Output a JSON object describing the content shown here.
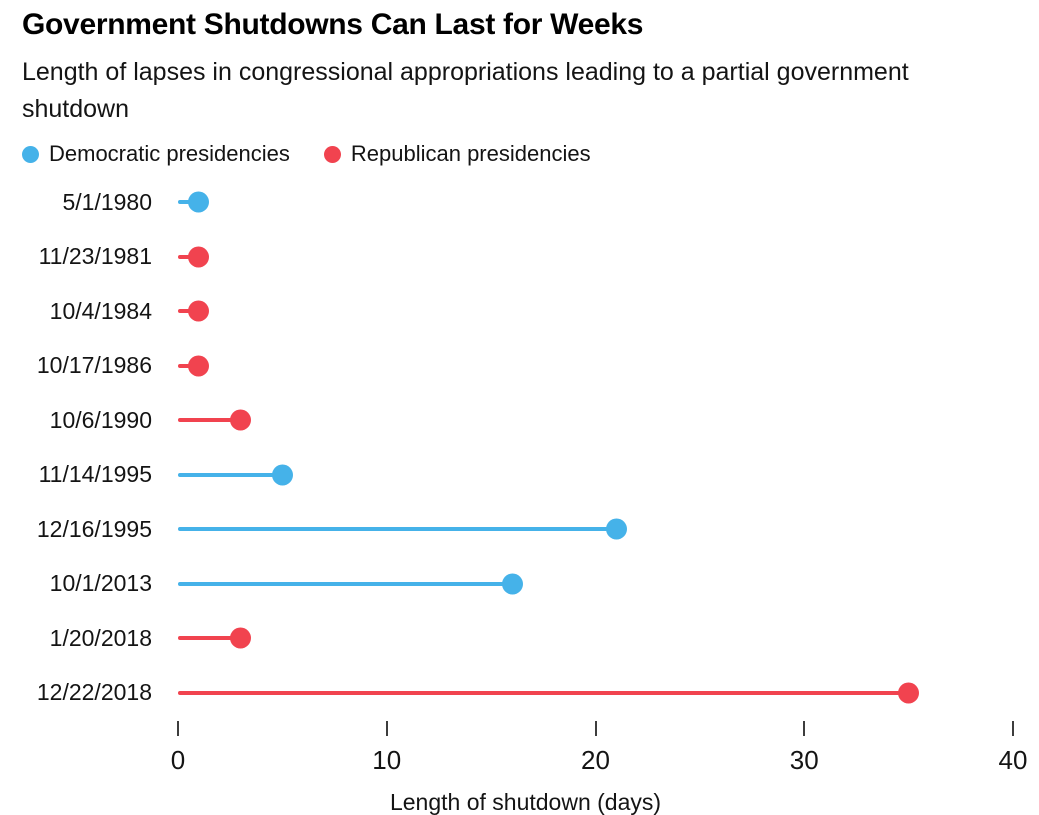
{
  "header": {
    "title": "Government Shutdowns Can Last for Weeks",
    "subtitle": "Length of lapses in congressional appropriations leading to a partial government shutdown"
  },
  "legend": [
    {
      "key": "dem",
      "label": "Democratic presidencies",
      "color": "#45b2e9"
    },
    {
      "key": "rep",
      "label": "Republican presidencies",
      "color": "#f1434f"
    }
  ],
  "chart_data": {
    "type": "bar",
    "style": "lollipop",
    "orientation": "horizontal",
    "title": "Government Shutdowns Can Last for Weeks",
    "subtitle": "Length of lapses in congressional appropriations leading to a partial government shutdown",
    "xlabel": "Length of shutdown (days)",
    "ylabel": "",
    "xlim": [
      0,
      40
    ],
    "x_ticks": [
      0,
      10,
      20,
      30,
      40
    ],
    "grid": false,
    "legend_position": "top",
    "categories": [
      "5/1/1980",
      "11/23/1981",
      "10/4/1984",
      "10/17/1986",
      "10/6/1990",
      "11/14/1995",
      "12/16/1995",
      "10/1/2013",
      "1/20/2018",
      "12/22/2018"
    ],
    "values": [
      1,
      1,
      1,
      1,
      3,
      5,
      21,
      16,
      3,
      35
    ],
    "rows": [
      {
        "date": "5/1/1980",
        "days": 1,
        "party": "dem"
      },
      {
        "date": "11/23/1981",
        "days": 1,
        "party": "rep"
      },
      {
        "date": "10/4/1984",
        "days": 1,
        "party": "rep"
      },
      {
        "date": "10/17/1986",
        "days": 1,
        "party": "rep"
      },
      {
        "date": "10/6/1990",
        "days": 3,
        "party": "rep"
      },
      {
        "date": "11/14/1995",
        "days": 5,
        "party": "dem"
      },
      {
        "date": "12/16/1995",
        "days": 21,
        "party": "dem"
      },
      {
        "date": "10/1/2013",
        "days": 16,
        "party": "dem"
      },
      {
        "date": "1/20/2018",
        "days": 3,
        "party": "rep"
      },
      {
        "date": "12/22/2018",
        "days": 35,
        "party": "rep"
      }
    ],
    "colors": {
      "dem": "#45b2e9",
      "rep": "#f1434f"
    }
  }
}
